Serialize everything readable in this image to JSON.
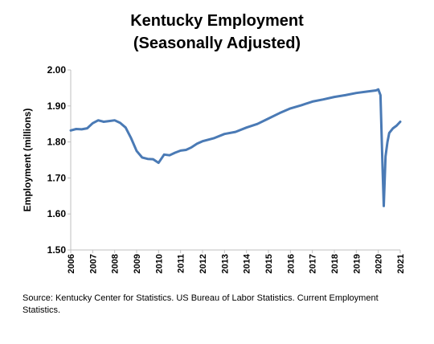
{
  "title_line1": "Kentucky Employment",
  "title_line2": "(Seasonally Adjusted)",
  "source": "Source: Kentucky Center for Statistics. US Bureau of Labor Statistics. Current Employment Statistics.",
  "chart_data": {
    "type": "line",
    "title": "Kentucky Employment (Seasonally Adjusted)",
    "xlabel": "",
    "ylabel": "Employment (millions)",
    "ylim": [
      1.5,
      2.0
    ],
    "xlim": [
      2006,
      2021
    ],
    "yticks": [
      "1.50",
      "1.60",
      "1.70",
      "1.80",
      "1.90",
      "2.00"
    ],
    "xticks": [
      "2006",
      "2007",
      "2008",
      "2009",
      "2010",
      "2011",
      "2012",
      "2013",
      "2014",
      "2015",
      "2016",
      "2017",
      "2018",
      "2019",
      "2020",
      "2021"
    ],
    "grid": false,
    "line_color": "#4a7ab5",
    "series": [
      {
        "x": [
          2006.0,
          2006.25,
          2006.5,
          2006.75,
          2007.0,
          2007.25,
          2007.5,
          2007.75,
          2008.0,
          2008.25,
          2008.5,
          2008.75,
          2009.0,
          2009.25,
          2009.5,
          2009.75,
          2010.0,
          2010.25,
          2010.5,
          2010.75,
          2011.0,
          2011.25,
          2011.5,
          2011.75,
          2012.0,
          2012.5,
          2013.0,
          2013.5,
          2014.0,
          2014.5,
          2015.0,
          2015.5,
          2016.0,
          2016.5,
          2017.0,
          2017.5,
          2018.0,
          2018.5,
          2019.0,
          2019.5,
          2019.9,
          2020.0,
          2020.1,
          2020.2,
          2020.25,
          2020.33,
          2020.42,
          2020.5,
          2020.67,
          2020.83,
          2021.0
        ],
        "values": [
          1.832,
          1.836,
          1.835,
          1.838,
          1.852,
          1.86,
          1.856,
          1.858,
          1.86,
          1.853,
          1.84,
          1.81,
          1.775,
          1.757,
          1.753,
          1.752,
          1.742,
          1.765,
          1.763,
          1.77,
          1.776,
          1.778,
          1.785,
          1.795,
          1.802,
          1.81,
          1.822,
          1.828,
          1.84,
          1.85,
          1.865,
          1.88,
          1.893,
          1.902,
          1.912,
          1.918,
          1.925,
          1.93,
          1.936,
          1.94,
          1.943,
          1.946,
          1.93,
          1.72,
          1.622,
          1.76,
          1.8,
          1.825,
          1.838,
          1.845,
          1.856
        ]
      }
    ]
  }
}
